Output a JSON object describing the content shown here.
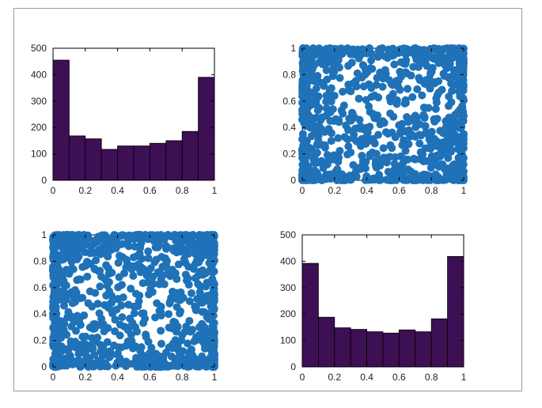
{
  "colors": {
    "bar_fill": "#3d0f54",
    "bar_edge": "#000000",
    "scatter": "#1f72b8",
    "frame": "#9a9a9a"
  },
  "chart_data": [
    {
      "type": "bar",
      "position": "top-left",
      "bin_edges": [
        0,
        0.1,
        0.2,
        0.3,
        0.4,
        0.5,
        0.6,
        0.7,
        0.8,
        0.9,
        1.0
      ],
      "values": [
        455,
        168,
        157,
        117,
        130,
        130,
        140,
        150,
        185,
        390
      ],
      "xlim": [
        0,
        1
      ],
      "ylim": [
        0,
        500
      ],
      "xticks": [
        "0",
        "0.2",
        "0.4",
        "0.6",
        "0.8",
        "1"
      ],
      "yticks": [
        "0",
        "100",
        "200",
        "300",
        "400",
        "500"
      ],
      "title": "",
      "xlabel": "",
      "ylabel": ""
    },
    {
      "type": "scatter",
      "position": "top-right",
      "description_of_data": "about 1000 points filling the unit square, denser near all four edges",
      "n_points": 1000,
      "xlim": [
        0,
        1
      ],
      "ylim": [
        0,
        1
      ],
      "xticks": [
        "0",
        "0.2",
        "0.4",
        "0.6",
        "0.8",
        "1"
      ],
      "yticks": [
        "0",
        "0.2",
        "0.4",
        "0.6",
        "0.8",
        "1"
      ],
      "title": "",
      "xlabel": "",
      "ylabel": ""
    },
    {
      "type": "scatter",
      "position": "bottom-left",
      "n_points": 1000,
      "xlim": [
        0,
        1
      ],
      "ylim": [
        0,
        1
      ],
      "xticks": [
        "0",
        "0.2",
        "0.4",
        "0.6",
        "0.8",
        "1"
      ],
      "yticks": [
        "0",
        "0.2",
        "0.4",
        "0.6",
        "0.8",
        "1"
      ],
      "title": "",
      "xlabel": "",
      "ylabel": ""
    },
    {
      "type": "bar",
      "position": "bottom-right",
      "bin_edges": [
        0,
        0.1,
        0.2,
        0.3,
        0.4,
        0.5,
        0.6,
        0.7,
        0.8,
        0.9,
        1.0
      ],
      "values": [
        392,
        188,
        148,
        142,
        133,
        128,
        140,
        133,
        182,
        418
      ],
      "xlim": [
        0,
        1
      ],
      "ylim": [
        0,
        500
      ],
      "xticks": [
        "0",
        "0.2",
        "0.4",
        "0.6",
        "0.8",
        "1"
      ],
      "yticks": [
        "0",
        "100",
        "200",
        "300",
        "400",
        "500"
      ],
      "title": "",
      "xlabel": "",
      "ylabel": ""
    }
  ]
}
